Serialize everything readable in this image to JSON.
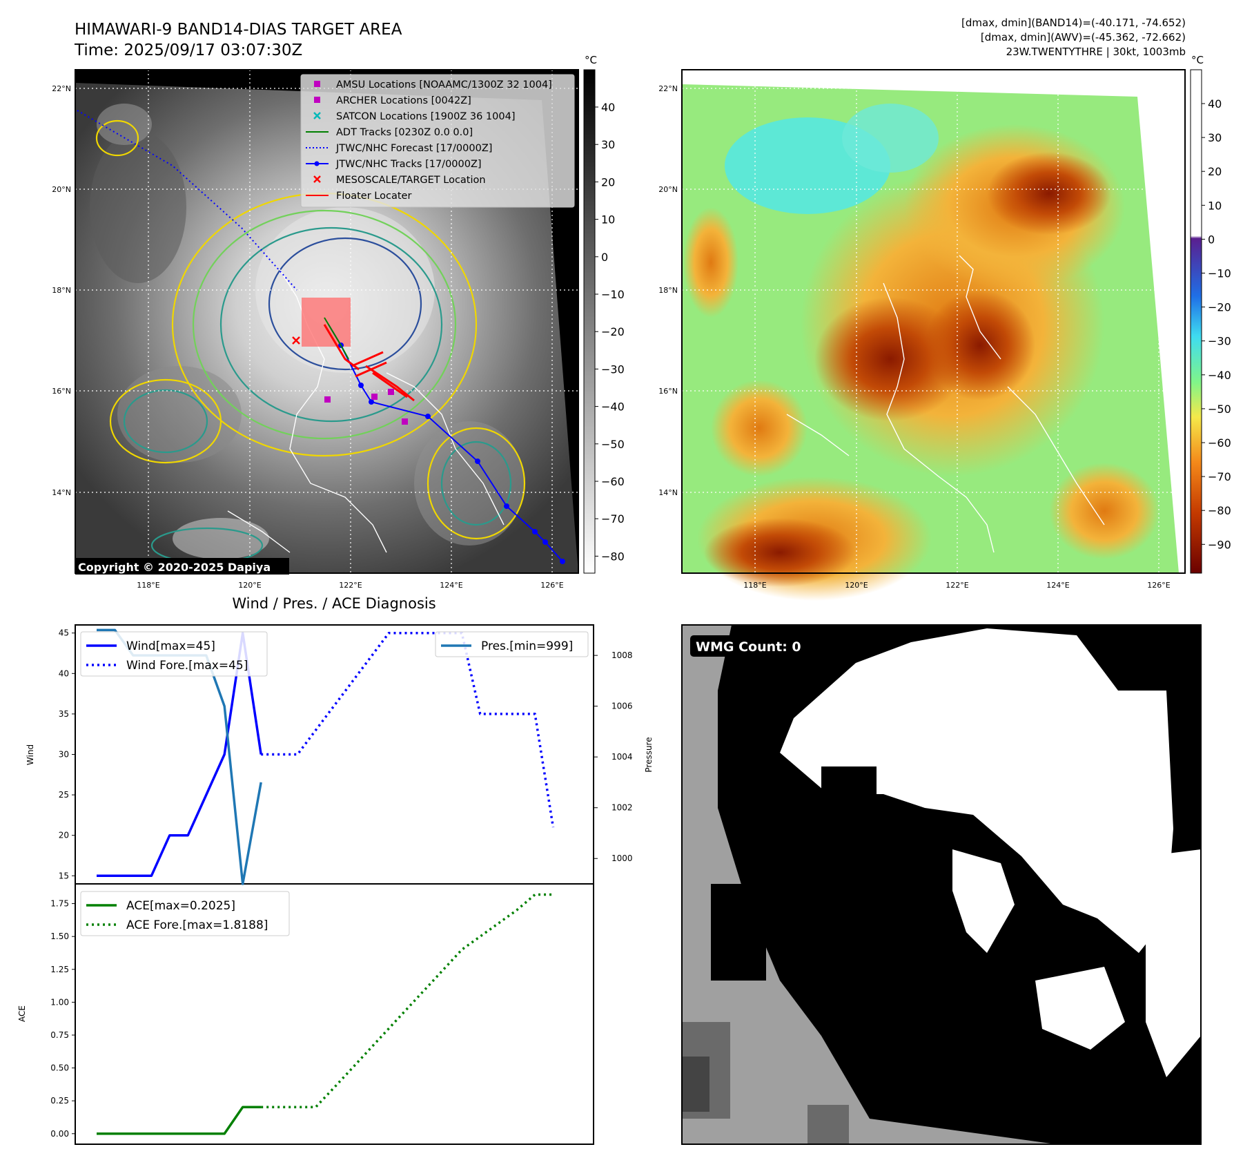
{
  "header": {
    "title_line1": "HIMAWARI-9 BAND14-DIAS TARGET AREA",
    "title_line2": "Time: 2025/09/17 03:07:30Z",
    "info_line1": "[dmax, dmin](BAND14)=(-40.171, -74.652)",
    "info_line2": "[dmax, dmin](AWV)=(-45.362, -72.662)",
    "info_line3": "23W.TWENTYTHRE | 30kt, 1003mb"
  },
  "map_ir": {
    "lat_labels": [
      "22°N",
      "20°N",
      "18°N",
      "16°N",
      "14°N"
    ],
    "lon_labels": [
      "118°E",
      "120°E",
      "122°E",
      "124°E",
      "126°E"
    ],
    "copyright": "Copyright © 2020-2025 Dapiya",
    "colorbar_unit": "°C",
    "colorbar_ticks": [
      "40",
      "30",
      "20",
      "10",
      "0",
      "−10",
      "−20",
      "−30",
      "−40",
      "−50",
      "−60",
      "−70",
      "−80"
    ],
    "legend": [
      {
        "label": "AMSU Locations [NOAAMC/1300Z 32 1004]",
        "icon": "magenta-square-marker",
        "color": "#c000c0"
      },
      {
        "label": "ARCHER Locations [0042Z]",
        "icon": "magenta-square-marker",
        "color": "#c000c0"
      },
      {
        "label": "SATCON Locations [1900Z 36 1004]",
        "icon": "cyan-x-marker",
        "color": "#00b8b8"
      },
      {
        "label": "ADT Tracks [0230Z 0.0 0.0]",
        "icon": "green-line",
        "color": "#008000"
      },
      {
        "label": "JTWC/NHC Forecast [17/0000Z]",
        "icon": "blue-dotted-line",
        "color": "#0000ff"
      },
      {
        "label": "JTWC/NHC Tracks [17/0000Z]",
        "icon": "blue-line-dot",
        "color": "#0000ff"
      },
      {
        "label": "MESOSCALE/TARGET Location",
        "icon": "red-x-marker",
        "color": "#ff0000"
      },
      {
        "label": "Floater Locater",
        "icon": "red-line",
        "color": "#ff0000"
      }
    ]
  },
  "map_awv": {
    "lat_labels": [
      "22°N",
      "20°N",
      "18°N",
      "16°N",
      "14°N"
    ],
    "lon_labels": [
      "118°E",
      "120°E",
      "122°E",
      "124°E",
      "126°E"
    ],
    "colorbar_unit": "°C",
    "colorbar_ticks": [
      "40",
      "30",
      "20",
      "10",
      "0",
      "−10",
      "−20",
      "−30",
      "−40",
      "−50",
      "−60",
      "−70",
      "−80",
      "−90"
    ]
  },
  "wmg": {
    "label": "WMG Count: 0"
  },
  "chart_data": [
    {
      "type": "line",
      "title": "Wind / Pres. / ACE Diagnosis",
      "ylabel": "Wind",
      "ylabel_right": "Pressure",
      "ylim": [
        14,
        46
      ],
      "ylim_right": [
        999.0,
        1009.2
      ],
      "yticks": [
        15,
        20,
        25,
        30,
        35,
        40,
        45
      ],
      "yticks_right": [
        1000,
        1002,
        1004,
        1006,
        1008
      ],
      "x_range": [
        0,
        26
      ],
      "grid": false,
      "legend_placement": "top-left and top-right",
      "series": [
        {
          "name": "Wind[max=45]",
          "color": "#0000ff",
          "style": "solid",
          "axis": "left",
          "x": [
            0,
            1,
            2,
            3,
            4,
            5,
            6,
            7,
            8,
            9
          ],
          "values": [
            15,
            15,
            15,
            15,
            20,
            20,
            25,
            30,
            45,
            30
          ]
        },
        {
          "name": "Wind Fore.[max=45]",
          "color": "#0000ff",
          "style": "dotted",
          "axis": "left",
          "x": [
            9,
            10,
            11,
            12,
            13,
            14,
            15,
            16,
            17,
            18,
            19,
            20,
            21,
            22,
            23,
            24,
            25
          ],
          "values": [
            30,
            30,
            30,
            33,
            36,
            39,
            42,
            45,
            45,
            45,
            45,
            45,
            35,
            35,
            35,
            35,
            21
          ]
        },
        {
          "name": "Pres.[min=999]",
          "color": "#1f77b4",
          "style": "solid",
          "axis": "right",
          "x": [
            0,
            1,
            2,
            3,
            4,
            5,
            6,
            7,
            8,
            9
          ],
          "values": [
            1009,
            1009,
            1008,
            1008,
            1008,
            1008,
            1008,
            1006,
            999,
            1003
          ]
        }
      ]
    },
    {
      "type": "line",
      "ylabel": "ACE",
      "ylim": [
        -0.08,
        1.9
      ],
      "yticks": [
        0.0,
        0.25,
        0.5,
        0.75,
        1.0,
        1.25,
        1.5,
        1.75
      ],
      "ytick_labels": [
        "0.00",
        "0.25",
        "0.50",
        "0.75",
        "1.00",
        "1.25",
        "1.50",
        "1.75"
      ],
      "x_range": [
        0,
        26
      ],
      "grid": false,
      "legend_placement": "top-left",
      "series": [
        {
          "name": "ACE[max=0.2025]",
          "color": "#008000",
          "style": "solid",
          "x": [
            0,
            1,
            2,
            3,
            4,
            5,
            6,
            7,
            8,
            9
          ],
          "values": [
            0,
            0,
            0,
            0,
            0,
            0,
            0,
            0,
            0.2025,
            0.2025
          ]
        },
        {
          "name": "ACE Fore.[max=1.8188]",
          "color": "#008000",
          "style": "dotted",
          "x": [
            9,
            10,
            11,
            12,
            13,
            14,
            15,
            16,
            17,
            18,
            19,
            20,
            21,
            22,
            23,
            24,
            25
          ],
          "values": [
            0.2025,
            0.2025,
            0.2025,
            0.2025,
            0.35,
            0.5,
            0.65,
            0.8,
            0.95,
            1.1,
            1.25,
            1.4,
            1.5,
            1.6,
            1.7,
            1.8188,
            1.8188
          ]
        }
      ]
    }
  ]
}
